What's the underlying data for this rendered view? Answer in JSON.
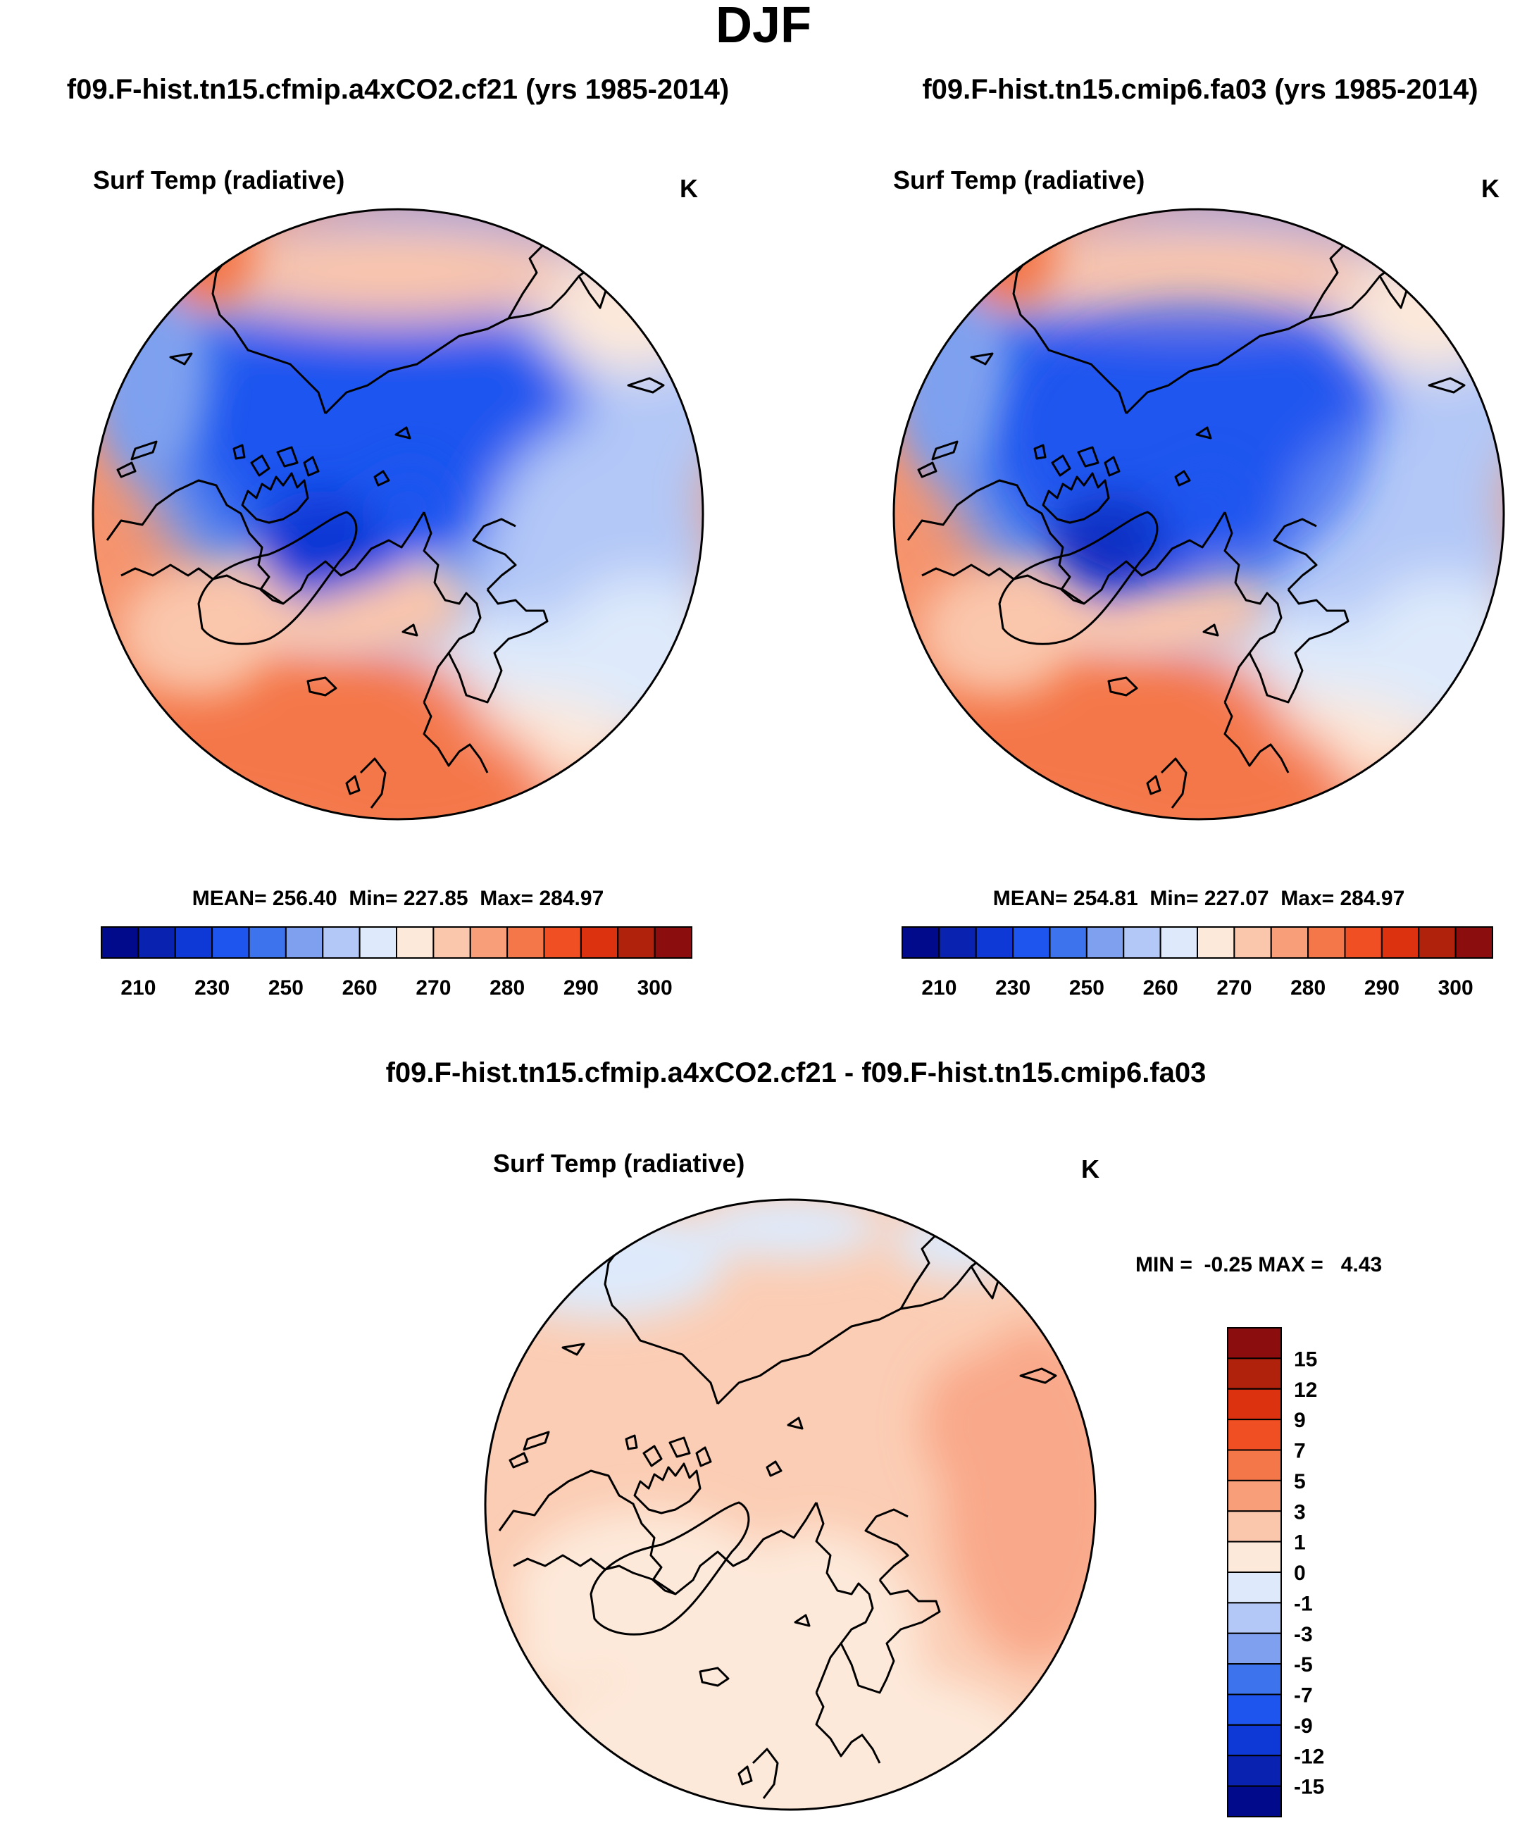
{
  "chart_data": {
    "type": "heatmap",
    "title": "DJF",
    "figure_kind": "polar stereographic maps (north pole)",
    "panels": [
      {
        "id": "case",
        "title": "f09.F-hist.tn15.cfmip.a4xCO2.cf21 (yrs 1985-2014)",
        "variable": "Surf Temp (radiative)",
        "units": "K",
        "stats_label": "MEAN= 256.40  Min= 227.85  Max= 284.97",
        "stats": {
          "mean": 256.4,
          "min": 227.85,
          "max": 284.97
        },
        "colorbar": {
          "orientation": "horizontal",
          "levels": [
            205,
            210,
            220,
            230,
            240,
            250,
            255,
            260,
            265,
            270,
            275,
            280,
            285,
            290,
            295,
            300
          ],
          "tick_labels": [
            "210",
            "230",
            "250",
            "260",
            "270",
            "280",
            "290",
            "300"
          ],
          "colors": [
            "#000a8a",
            "#0a22b0",
            "#0f39d6",
            "#1f55ef",
            "#3d74ee",
            "#7ea0ef",
            "#b3c8f7",
            "#deeafb",
            "#fde9da",
            "#fac6ac",
            "#f89f79",
            "#f4774a",
            "#f04e23",
            "#dc3210",
            "#b0220c",
            "#8b0d0d"
          ]
        }
      },
      {
        "id": "control",
        "title": "f09.F-hist.tn15.cmip6.fa03 (yrs 1985-2014)",
        "variable": "Surf Temp (radiative)",
        "units": "K",
        "stats_label": "MEAN= 254.81  Min= 227.07  Max= 284.97",
        "stats": {
          "mean": 254.81,
          "min": 227.07,
          "max": 284.97
        },
        "colorbar": {
          "orientation": "horizontal",
          "levels": [
            205,
            210,
            220,
            230,
            240,
            250,
            255,
            260,
            265,
            270,
            275,
            280,
            285,
            290,
            295,
            300
          ],
          "tick_labels": [
            "210",
            "230",
            "250",
            "260",
            "270",
            "280",
            "290",
            "300"
          ],
          "colors": [
            "#000a8a",
            "#0a22b0",
            "#0f39d6",
            "#1f55ef",
            "#3d74ee",
            "#7ea0ef",
            "#b3c8f7",
            "#deeafb",
            "#fde9da",
            "#fac6ac",
            "#f89f79",
            "#f4774a",
            "#f04e23",
            "#dc3210",
            "#b0220c",
            "#8b0d0d"
          ]
        }
      },
      {
        "id": "difference",
        "title": "f09.F-hist.tn15.cfmip.a4xCO2.cf21 - f09.F-hist.tn15.cmip6.fa03",
        "variable": "Surf Temp (radiative)",
        "units": "K",
        "stats_label": "MIN =  -0.25 MAX =   4.43",
        "stats": {
          "min": -0.25,
          "max": 4.43
        },
        "colorbar": {
          "orientation": "vertical",
          "levels": [
            15,
            12,
            9,
            7,
            5,
            3,
            1,
            0,
            -1,
            -3,
            -5,
            -7,
            -9,
            -12,
            -15
          ],
          "tick_labels": [
            "15",
            "12",
            "9",
            "7",
            "5",
            "3",
            "1",
            "0",
            "-1",
            "-3",
            "-5",
            "-7",
            "-9",
            "-12",
            "-15"
          ],
          "colors": [
            "#8b0d0d",
            "#b0220c",
            "#dc3210",
            "#f04e23",
            "#f4774a",
            "#f89f79",
            "#fac6ac",
            "#fde9da",
            "#deeafb",
            "#b3c8f7",
            "#7ea0ef",
            "#3d74ee",
            "#1f55ef",
            "#0f39d6",
            "#0a22b0",
            "#000a8a"
          ]
        }
      }
    ]
  }
}
